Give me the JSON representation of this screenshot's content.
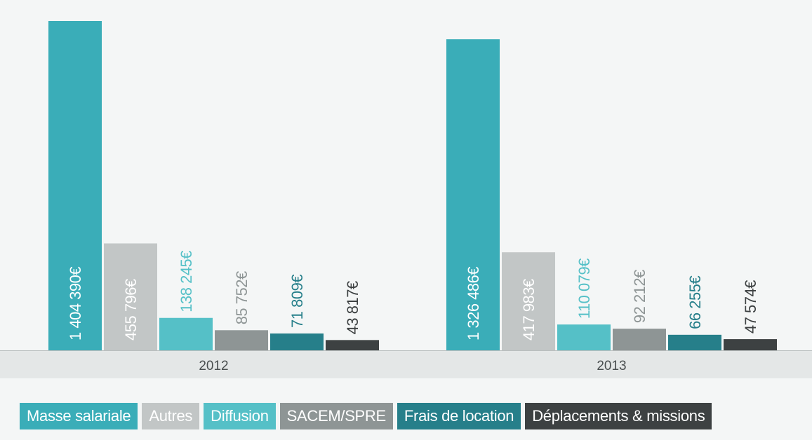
{
  "chart_data": {
    "type": "bar",
    "categories": [
      "2012",
      "2013"
    ],
    "series": [
      {
        "name": "Masse salariale",
        "values": [
          1404390,
          1326486
        ],
        "labels": [
          "1 404 390€",
          "1 326 486€"
        ],
        "color": "#3aadb8",
        "label_color": "#ffffff",
        "label_inside": true
      },
      {
        "name": "Autres",
        "values": [
          455796,
          417983
        ],
        "labels": [
          "455 796€",
          "417 983€"
        ],
        "color": "#c2c6c6",
        "label_color": "#ffffff",
        "label_inside": true
      },
      {
        "name": "Diffusion",
        "values": [
          138245,
          110079
        ],
        "labels": [
          "138 245€",
          "110 079€"
        ],
        "color": "#55c0c7",
        "label_color": "#55c0c7",
        "label_inside": false
      },
      {
        "name": "SACEM/SPRE",
        "values": [
          85752,
          92212
        ],
        "labels": [
          "85 752€",
          "92 212€"
        ],
        "color": "#8e9595",
        "label_color": "#8e9595",
        "label_inside": false
      },
      {
        "name": "Frais de location",
        "values": [
          71809,
          66255
        ],
        "labels": [
          "71 809€",
          "66 255€"
        ],
        "color": "#267f8a",
        "label_color": "#267f8a",
        "label_inside": false
      },
      {
        "name": "Déplacements & missions",
        "values": [
          43817,
          47574
        ],
        "labels": [
          "43 817€",
          "47 574€"
        ],
        "color": "#3d4142",
        "label_color": "#3d4142",
        "label_inside": false
      }
    ],
    "ylim": [
      0,
      1404390
    ],
    "legend_position": "bottom",
    "grid": false,
    "colors": {
      "background": "#f4f6f6",
      "axis_band": "#e4e7e7",
      "axis_line": "#b9bebe",
      "tick_text": "#4a4f50"
    }
  }
}
